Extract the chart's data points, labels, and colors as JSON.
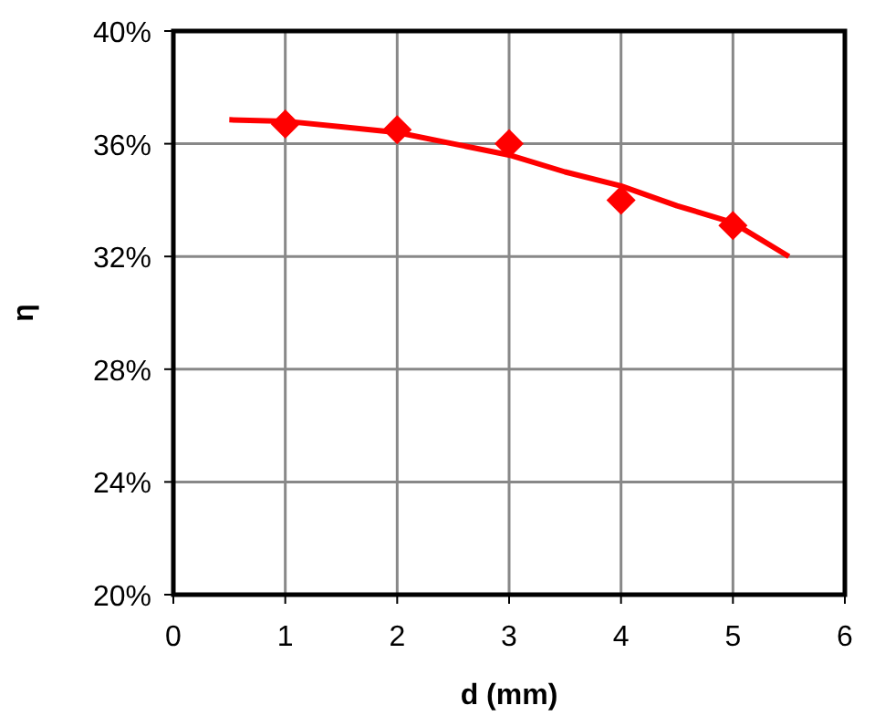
{
  "chart_data": {
    "type": "line",
    "xlabel": "d (mm)",
    "ylabel": "η",
    "xlim": [
      0,
      6
    ],
    "xticks": [
      0,
      1,
      2,
      3,
      4,
      5,
      6
    ],
    "ylim": [
      20,
      40
    ],
    "yticks": [
      {
        "value": 20,
        "label": "20%"
      },
      {
        "value": 24,
        "label": "24%"
      },
      {
        "value": 28,
        "label": "28%"
      },
      {
        "value": 32,
        "label": "32%"
      },
      {
        "value": 36,
        "label": "36%"
      },
      {
        "value": 40,
        "label": "40%"
      }
    ],
    "grid": true,
    "series": [
      {
        "color": "#ff0000",
        "marker": "none",
        "x": [
          0.5,
          1,
          1.5,
          2,
          2.5,
          3,
          3.5,
          4,
          4.5,
          5,
          5.5
        ],
        "values": [
          36.85,
          36.8,
          36.6,
          36.4,
          36.0,
          35.6,
          35.0,
          34.5,
          33.8,
          33.2,
          32.0
        ]
      },
      {
        "type": "scatter",
        "color": "#ff0000",
        "marker": "diamond",
        "x": [
          1,
          2,
          3,
          4,
          5
        ],
        "values": [
          36.7,
          36.5,
          36.0,
          34.0,
          33.1
        ]
      }
    ]
  }
}
